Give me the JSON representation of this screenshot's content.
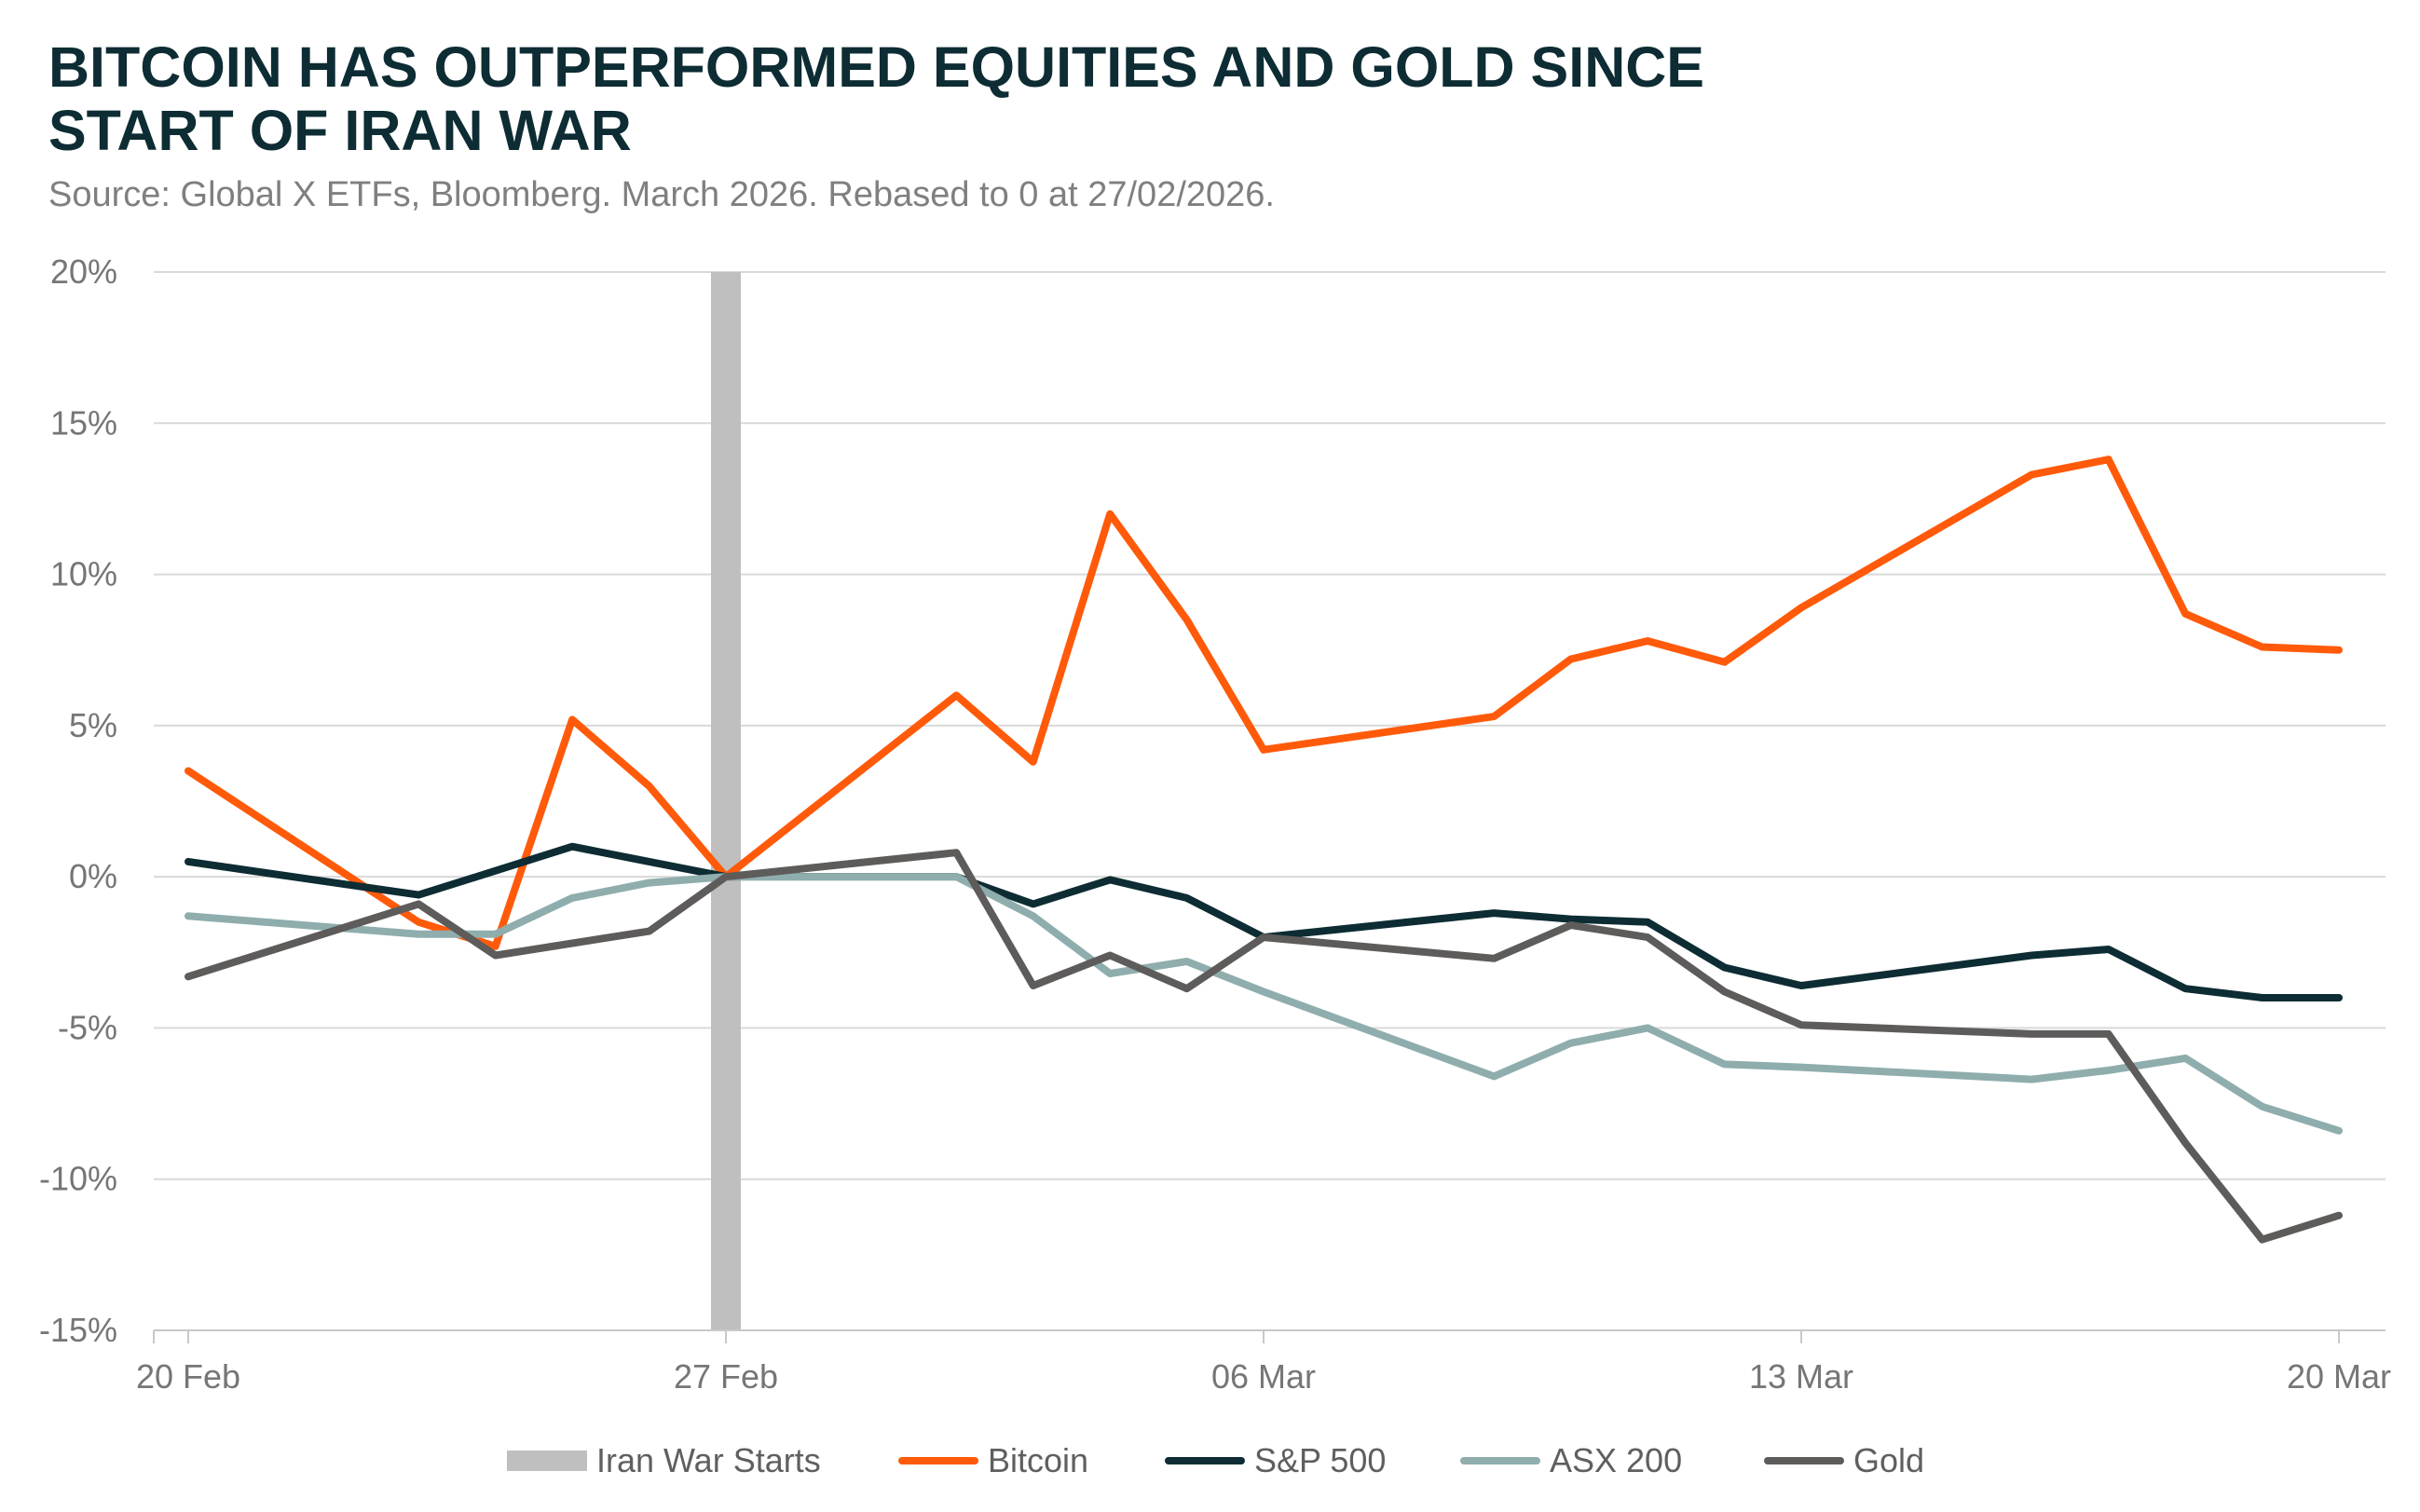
{
  "chart_data": {
    "type": "line",
    "title_lines": [
      "BITCOIN HAS OUTPERFORMED EQUITIES AND GOLD SINCE",
      "START OF IRAN WAR"
    ],
    "subtitle": "Source: Global X ETFs, Bloomberg. March 2026. Rebased to 0 at 27/02/2026.",
    "ylim": [
      -15,
      20
    ],
    "yticks": [
      20,
      15,
      10,
      5,
      0,
      -5,
      -10,
      -15
    ],
    "ytick_labels": [
      "20%",
      "15%",
      "10%",
      "5%",
      "0%",
      "-5%",
      "-10%",
      "-15%"
    ],
    "xticks": [
      {
        "x": 0,
        "label": "20 Feb"
      },
      {
        "x": 7,
        "label": "27 Feb"
      },
      {
        "x": 14,
        "label": "06 Mar"
      },
      {
        "x": 21,
        "label": "13 Mar"
      },
      {
        "x": 28,
        "label": "20 Mar"
      }
    ],
    "xlim": [
      0,
      28.4
    ],
    "event_marker": {
      "x": 7,
      "name": "Iran War Starts",
      "color": "#bfbfbf"
    },
    "grid": "horizontal",
    "legend_position": "bottom",
    "series": [
      {
        "name": "Bitcoin",
        "color": "#ff5a0a",
        "x": [
          0,
          3,
          4,
          5,
          6,
          7,
          10,
          11,
          12,
          13,
          14,
          17,
          18,
          19,
          20,
          21,
          24,
          25,
          26,
          27,
          28
        ],
        "y": [
          3.5,
          -1.5,
          -2.3,
          5.2,
          3.0,
          0.0,
          6.0,
          3.8,
          12.0,
          8.5,
          4.2,
          5.3,
          7.2,
          7.8,
          7.1,
          8.9,
          13.3,
          13.8,
          8.7,
          7.6,
          7.5
        ]
      },
      {
        "name": "S&P 500",
        "color": "#0d2c33",
        "x": [
          0,
          3,
          4,
          5,
          6,
          7,
          10,
          11,
          12,
          13,
          14,
          17,
          18,
          19,
          20,
          21,
          24,
          25,
          26,
          27,
          28
        ],
        "y": [
          0.5,
          -0.6,
          0.2,
          1.0,
          0.5,
          0.0,
          0.0,
          -0.9,
          -0.1,
          -0.7,
          -2.0,
          -1.2,
          -1.4,
          -1.5,
          -3.0,
          -3.6,
          -2.6,
          -2.4,
          -3.7,
          -4.0,
          -4.0
        ]
      },
      {
        "name": "ASX 200",
        "color": "#8fadad",
        "x": [
          0,
          3,
          4,
          5,
          6,
          7,
          10,
          11,
          12,
          13,
          14,
          17,
          18,
          19,
          20,
          21,
          24,
          25,
          26,
          27,
          28
        ],
        "y": [
          -1.3,
          -1.9,
          -1.9,
          -0.7,
          -0.2,
          0.0,
          0.0,
          -1.3,
          -3.2,
          -2.8,
          -3.8,
          -6.6,
          -5.5,
          -5.0,
          -6.2,
          -6.3,
          -6.7,
          -6.4,
          -6.0,
          -7.6,
          -8.4
        ]
      },
      {
        "name": "Gold",
        "color": "#5e5b5b",
        "x": [
          0,
          3,
          4,
          5,
          6,
          7,
          10,
          11,
          12,
          13,
          14,
          17,
          18,
          19,
          20,
          21,
          24,
          25,
          26,
          27,
          28
        ],
        "y": [
          -3.3,
          -0.9,
          -2.6,
          -2.2,
          -1.8,
          0.0,
          0.8,
          -3.6,
          -2.6,
          -3.7,
          -2.0,
          -2.7,
          -1.6,
          -2.0,
          -3.8,
          -4.9,
          -5.2,
          -5.2,
          -8.8,
          -12.0,
          -11.2
        ]
      }
    ]
  }
}
